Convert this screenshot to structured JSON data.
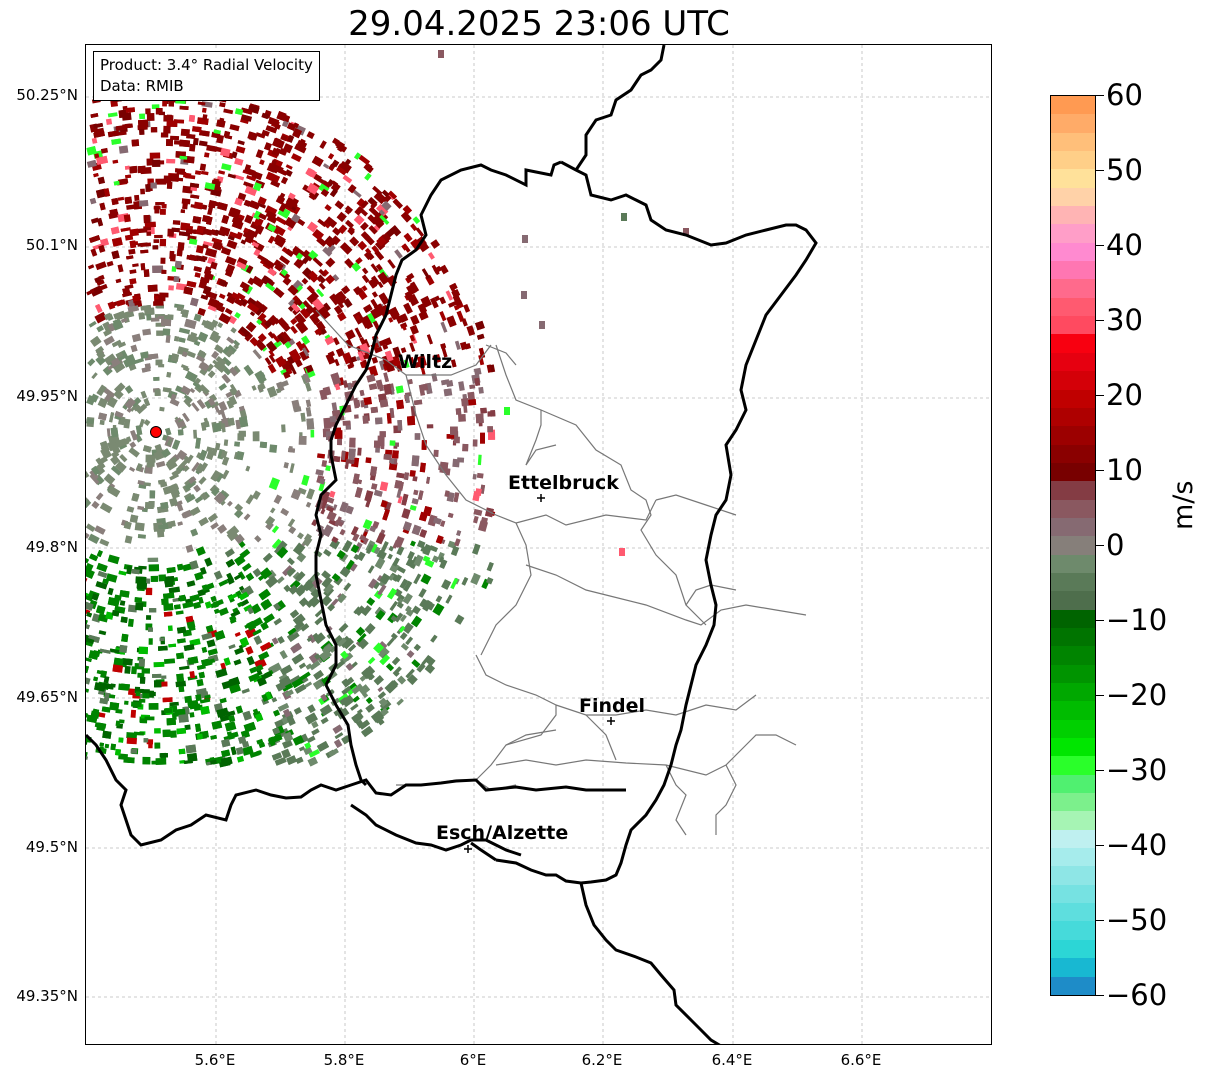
{
  "title": "29.04.2025 23:06 UTC",
  "info": {
    "product": "Product: 3.4° Radial Velocity",
    "data": "Data: RMIB"
  },
  "axes": {
    "lat_labels": [
      "50.25°N",
      "50.1°N",
      "49.95°N",
      "49.8°N",
      "49.65°N",
      "49.5°N",
      "49.35°N"
    ],
    "lon_labels": [
      "5.6°E",
      "5.8°E",
      "6°E",
      "6.2°E",
      "6.4°E",
      "6.6°E"
    ],
    "gridlines": true
  },
  "cities": [
    {
      "name": "Wiltz"
    },
    {
      "name": "Ettelbruck"
    },
    {
      "name": "Findel"
    },
    {
      "name": "Esch/Alzette"
    }
  ],
  "colorbar": {
    "unit": "m/s",
    "range": [
      -60,
      60
    ],
    "tick_labels": [
      "60",
      "50",
      "40",
      "30",
      "20",
      "10",
      "0",
      "−10",
      "−20",
      "−30",
      "−40",
      "−50",
      "−60"
    ],
    "colors_top_to_bottom": [
      "#ff9a52",
      "#ffab68",
      "#ffbf7a",
      "#ffcf88",
      "#ffe19a",
      "#ffd2a8",
      "#ffb4b4",
      "#ff9ec8",
      "#ff8ad0",
      "#ff76b2",
      "#ff6a8c",
      "#ff5a70",
      "#ff4a60",
      "#f80010",
      "#e60010",
      "#d40008",
      "#c00000",
      "#ae0000",
      "#9c0000",
      "#8a0000",
      "#780000",
      "#843c44",
      "#8a5860",
      "#866a72",
      "#867f7a",
      "#6e8a6c",
      "#5a7a58",
      "#4e6e4c",
      "#006400",
      "#007400",
      "#008400",
      "#009400",
      "#00a800",
      "#00bc00",
      "#00d000",
      "#00e600",
      "#2aff2a",
      "#50f070",
      "#7cf08c",
      "#a6f4b4",
      "#bff0f0",
      "#a6ecec",
      "#8ee6e6",
      "#76e2e2",
      "#5edede",
      "#46dada",
      "#2cd6d6",
      "#18b8d2",
      "#1e8cc8"
    ]
  },
  "radar_site": {
    "color": "#ff0000"
  }
}
